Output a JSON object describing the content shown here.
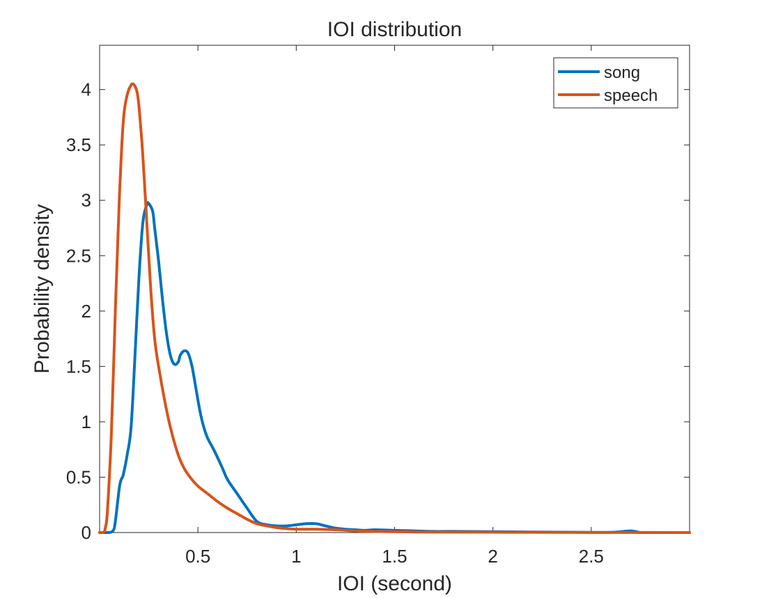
{
  "chart_data": {
    "type": "line",
    "title": "IOI distribution",
    "xlabel": "IOI (second)",
    "ylabel": "Probability density",
    "xlim": [
      0,
      3
    ],
    "ylim": [
      0,
      4.4
    ],
    "xticks": [
      0.5,
      1,
      1.5,
      2,
      2.5
    ],
    "xtick_labels": [
      "0.5",
      "1",
      "1.5",
      "2",
      "2.5"
    ],
    "yticks": [
      0,
      0.5,
      1,
      1.5,
      2,
      2.5,
      3,
      3.5,
      4
    ],
    "ytick_labels": [
      "0",
      "0.5",
      "1",
      "1.5",
      "2",
      "2.5",
      "3",
      "3.5",
      "4"
    ],
    "grid": false,
    "legend_position": "top-right",
    "series": [
      {
        "name": "song",
        "color": "#0072BD",
        "x": [
          0.0,
          0.03,
          0.05,
          0.07,
          0.08,
          0.1,
          0.11,
          0.12,
          0.14,
          0.16,
          0.18,
          0.2,
          0.22,
          0.24,
          0.25,
          0.27,
          0.28,
          0.3,
          0.32,
          0.34,
          0.36,
          0.38,
          0.4,
          0.41,
          0.43,
          0.45,
          0.47,
          0.49,
          0.51,
          0.53,
          0.55,
          0.58,
          0.62,
          0.65,
          0.7,
          0.75,
          0.8,
          0.85,
          0.9,
          0.95,
          1.0,
          1.05,
          1.1,
          1.15,
          1.2,
          1.25,
          1.3,
          1.35,
          1.4,
          1.5,
          1.6,
          1.7,
          1.8,
          2.0,
          2.2,
          2.4,
          2.6,
          2.7,
          2.75,
          2.8,
          2.9,
          3.0
        ],
        "y": [
          0.0,
          0.0,
          0.0,
          0.02,
          0.1,
          0.4,
          0.48,
          0.52,
          0.7,
          0.95,
          1.6,
          2.3,
          2.8,
          2.96,
          2.97,
          2.9,
          2.75,
          2.45,
          2.1,
          1.8,
          1.6,
          1.52,
          1.54,
          1.6,
          1.64,
          1.62,
          1.5,
          1.3,
          1.1,
          0.95,
          0.85,
          0.75,
          0.6,
          0.48,
          0.35,
          0.22,
          0.1,
          0.07,
          0.06,
          0.06,
          0.07,
          0.08,
          0.08,
          0.06,
          0.04,
          0.03,
          0.025,
          0.02,
          0.025,
          0.02,
          0.015,
          0.01,
          0.01,
          0.008,
          0.005,
          0.003,
          0.002,
          0.015,
          0.0,
          0.0,
          0.0,
          0.0
        ]
      },
      {
        "name": "speech",
        "color": "#D95319",
        "x": [
          0.0,
          0.02,
          0.03,
          0.04,
          0.06,
          0.08,
          0.1,
          0.12,
          0.14,
          0.16,
          0.17,
          0.18,
          0.19,
          0.2,
          0.22,
          0.24,
          0.26,
          0.28,
          0.3,
          0.33,
          0.36,
          0.4,
          0.43,
          0.46,
          0.5,
          0.55,
          0.6,
          0.65,
          0.7,
          0.75,
          0.8,
          0.85,
          0.9,
          0.95,
          1.0,
          1.05,
          1.1,
          1.2,
          1.3,
          1.4,
          1.5,
          1.6,
          1.8,
          2.0,
          2.2,
          2.5,
          3.0
        ],
        "y": [
          0.0,
          0.0,
          0.05,
          0.2,
          0.9,
          2.0,
          3.0,
          3.7,
          3.95,
          4.04,
          4.05,
          4.03,
          3.98,
          3.85,
          3.4,
          2.8,
          2.2,
          1.75,
          1.5,
          1.2,
          0.95,
          0.7,
          0.58,
          0.5,
          0.42,
          0.35,
          0.28,
          0.22,
          0.17,
          0.12,
          0.08,
          0.06,
          0.045,
          0.035,
          0.03,
          0.03,
          0.03,
          0.025,
          0.015,
          0.01,
          0.008,
          0.005,
          0.004,
          0.003,
          0.002,
          0.001,
          0.0
        ]
      }
    ]
  }
}
